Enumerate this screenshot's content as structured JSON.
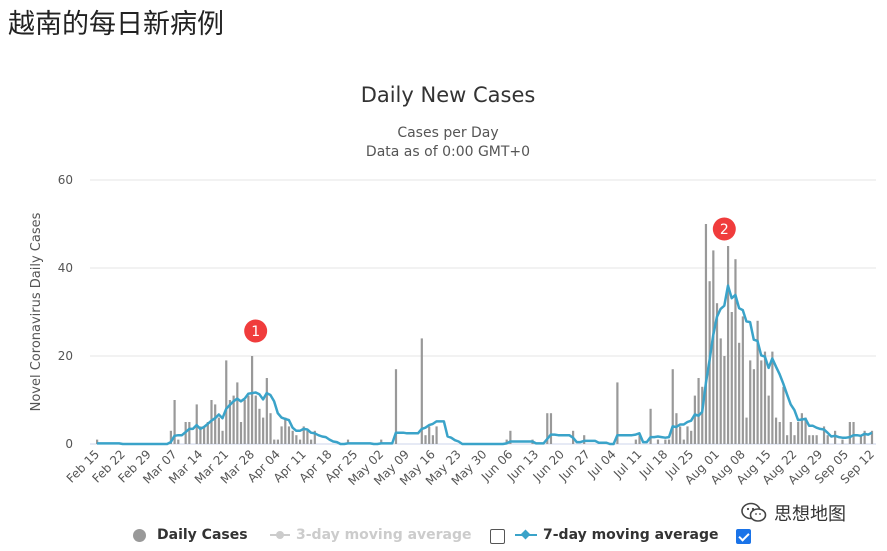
{
  "page_title": "越南的每日新病例",
  "watermark": "思想地图",
  "colors": {
    "bars": "#999999",
    "line": "#3aa3c9",
    "marker": "#f03c3c",
    "disabled": "#cccccc",
    "checkbox": "#1a73e8"
  },
  "legend": {
    "daily": "Daily Cases",
    "ma3": "3-day moving average",
    "ma3_checked": false,
    "ma7": "7-day moving average",
    "ma7_checked": true
  },
  "chart_data": {
    "type": "bar",
    "title": "Daily New Cases",
    "subtitle": [
      "Cases per Day",
      "Data as of 0:00 GMT+0"
    ],
    "ylabel": "Novel Coronavirus Daily Cases",
    "ylim": [
      0,
      60
    ],
    "yticks": [
      0,
      20,
      40,
      60
    ],
    "grid": true,
    "legend_position": "bottom",
    "xtick_labels": [
      "Feb 15",
      "Feb 22",
      "Feb 29",
      "Mar 07",
      "Mar 14",
      "Mar 21",
      "Mar 28",
      "Apr 04",
      "Apr 11",
      "Apr 18",
      "Apr 25",
      "May 02",
      "May 09",
      "May 16",
      "May 23",
      "May 30",
      "Jun 06",
      "Jun 13",
      "Jun 20",
      "Jun 27",
      "Jul 04",
      "Jul 11",
      "Jul 18",
      "Jul 25",
      "Aug 01",
      "Aug 08",
      "Aug 15",
      "Aug 22",
      "Aug 29",
      "Sep 05",
      "Sep 12"
    ],
    "annotations": [
      "1",
      "2"
    ],
    "annotation_dates": [
      "Mar 29",
      "Aug 03"
    ],
    "x": [
      "Feb 15",
      "Feb 16",
      "Feb 17",
      "Feb 18",
      "Feb 19",
      "Feb 20",
      "Feb 21",
      "Feb 22",
      "Feb 23",
      "Feb 24",
      "Feb 25",
      "Feb 26",
      "Feb 27",
      "Feb 28",
      "Feb 29",
      "Mar 01",
      "Mar 02",
      "Mar 03",
      "Mar 04",
      "Mar 05",
      "Mar 06",
      "Mar 07",
      "Mar 08",
      "Mar 09",
      "Mar 10",
      "Mar 11",
      "Mar 12",
      "Mar 13",
      "Mar 14",
      "Mar 15",
      "Mar 16",
      "Mar 17",
      "Mar 18",
      "Mar 19",
      "Mar 20",
      "Mar 21",
      "Mar 22",
      "Mar 23",
      "Mar 24",
      "Mar 25",
      "Mar 26",
      "Mar 27",
      "Mar 28",
      "Mar 29",
      "Mar 30",
      "Mar 31",
      "Apr 01",
      "Apr 02",
      "Apr 03",
      "Apr 04",
      "Apr 05",
      "Apr 06",
      "Apr 07",
      "Apr 08",
      "Apr 09",
      "Apr 10",
      "Apr 11",
      "Apr 12",
      "Apr 13",
      "Apr 14",
      "Apr 15",
      "Apr 16",
      "Apr 17",
      "Apr 18",
      "Apr 19",
      "Apr 20",
      "Apr 21",
      "Apr 22",
      "Apr 23",
      "Apr 24",
      "Apr 25",
      "Apr 26",
      "Apr 27",
      "Apr 28",
      "Apr 29",
      "Apr 30",
      "May 01",
      "May 02",
      "May 03",
      "May 04",
      "May 05",
      "May 06",
      "May 07",
      "May 08",
      "May 09",
      "May 10",
      "May 11",
      "May 12",
      "May 13",
      "May 14",
      "May 15",
      "May 16",
      "May 17",
      "May 18",
      "May 19",
      "May 20",
      "May 21",
      "May 22",
      "May 23",
      "May 24",
      "May 25",
      "May 26",
      "May 27",
      "May 28",
      "May 29",
      "May 30",
      "May 31",
      "Jun 01",
      "Jun 02",
      "Jun 03",
      "Jun 04",
      "Jun 05",
      "Jun 06",
      "Jun 07",
      "Jun 08",
      "Jun 09",
      "Jun 10",
      "Jun 11",
      "Jun 12",
      "Jun 13",
      "Jun 14",
      "Jun 15",
      "Jun 16",
      "Jun 17",
      "Jun 18",
      "Jun 19",
      "Jun 20",
      "Jun 21",
      "Jun 22",
      "Jun 23",
      "Jun 24",
      "Jun 25",
      "Jun 26",
      "Jun 27",
      "Jun 28",
      "Jun 29",
      "Jun 30",
      "Jul 01",
      "Jul 02",
      "Jul 03",
      "Jul 04",
      "Jul 05",
      "Jul 06",
      "Jul 07",
      "Jul 08",
      "Jul 09",
      "Jul 10",
      "Jul 11",
      "Jul 12",
      "Jul 13",
      "Jul 14",
      "Jul 15",
      "Jul 16",
      "Jul 17",
      "Jul 18",
      "Jul 19",
      "Jul 20",
      "Jul 21",
      "Jul 22",
      "Jul 23",
      "Jul 24",
      "Jul 25",
      "Jul 26",
      "Jul 27",
      "Jul 28",
      "Jul 29",
      "Jul 30",
      "Jul 31",
      "Aug 01",
      "Aug 02",
      "Aug 03",
      "Aug 04",
      "Aug 05",
      "Aug 06",
      "Aug 07",
      "Aug 08",
      "Aug 09",
      "Aug 10",
      "Aug 11",
      "Aug 12",
      "Aug 13",
      "Aug 14",
      "Aug 15",
      "Aug 16",
      "Aug 17",
      "Aug 18",
      "Aug 19",
      "Aug 20",
      "Aug 21",
      "Aug 22",
      "Aug 23",
      "Aug 24",
      "Aug 25",
      "Aug 26",
      "Aug 27",
      "Aug 28",
      "Aug 29",
      "Aug 30",
      "Aug 31",
      "Sep 01",
      "Sep 02",
      "Sep 03",
      "Sep 04",
      "Sep 05",
      "Sep 06",
      "Sep 07",
      "Sep 08",
      "Sep 09",
      "Sep 10",
      "Sep 11",
      "Sep 12"
    ],
    "series": [
      {
        "name": "Daily Cases",
        "values": [
          1,
          0,
          0,
          0,
          0,
          0,
          0,
          0,
          0,
          0,
          0,
          0,
          0,
          0,
          0,
          0,
          0,
          0,
          0,
          0,
          3,
          10,
          1,
          0,
          5,
          5,
          0,
          9,
          4,
          4,
          5,
          10,
          9,
          6,
          3,
          19,
          10,
          11,
          14,
          5,
          10,
          11,
          20,
          11,
          8,
          6,
          15,
          7,
          1,
          1,
          4,
          6,
          4,
          3,
          2,
          1,
          4,
          3,
          1,
          3,
          0,
          0,
          0,
          0,
          0,
          0,
          0,
          0,
          1,
          0,
          0,
          0,
          0,
          0,
          0,
          0,
          0,
          1,
          0,
          0,
          0,
          17,
          0,
          0,
          0,
          0,
          0,
          0,
          24,
          2,
          4,
          2,
          4,
          0,
          0,
          0,
          0,
          0,
          0,
          0,
          0,
          0,
          0,
          0,
          0,
          0,
          0,
          0,
          0,
          0,
          0,
          1,
          3,
          0,
          0,
          0,
          0,
          0,
          1,
          0,
          0,
          0,
          7,
          7,
          0,
          0,
          0,
          0,
          0,
          3,
          0,
          0,
          2,
          0,
          0,
          0,
          0,
          0,
          0,
          0,
          0,
          14,
          0,
          0,
          0,
          0,
          1,
          2,
          0,
          0,
          8,
          0,
          1,
          0,
          1,
          1,
          17,
          7,
          4,
          1,
          4,
          3,
          11,
          15,
          13,
          50,
          37,
          44,
          32,
          24,
          20,
          45,
          30,
          42,
          23,
          29,
          6,
          19,
          17,
          28,
          19,
          21,
          11,
          21,
          6,
          5,
          13,
          2,
          5,
          2,
          5,
          7,
          6,
          2,
          2,
          2,
          0,
          4,
          2,
          0,
          3,
          0,
          1,
          0,
          5,
          5,
          0,
          2,
          3,
          0,
          3
        ]
      },
      {
        "name": "7-day moving average",
        "derived_from": "Daily Cases",
        "window": 7
      }
    ]
  }
}
